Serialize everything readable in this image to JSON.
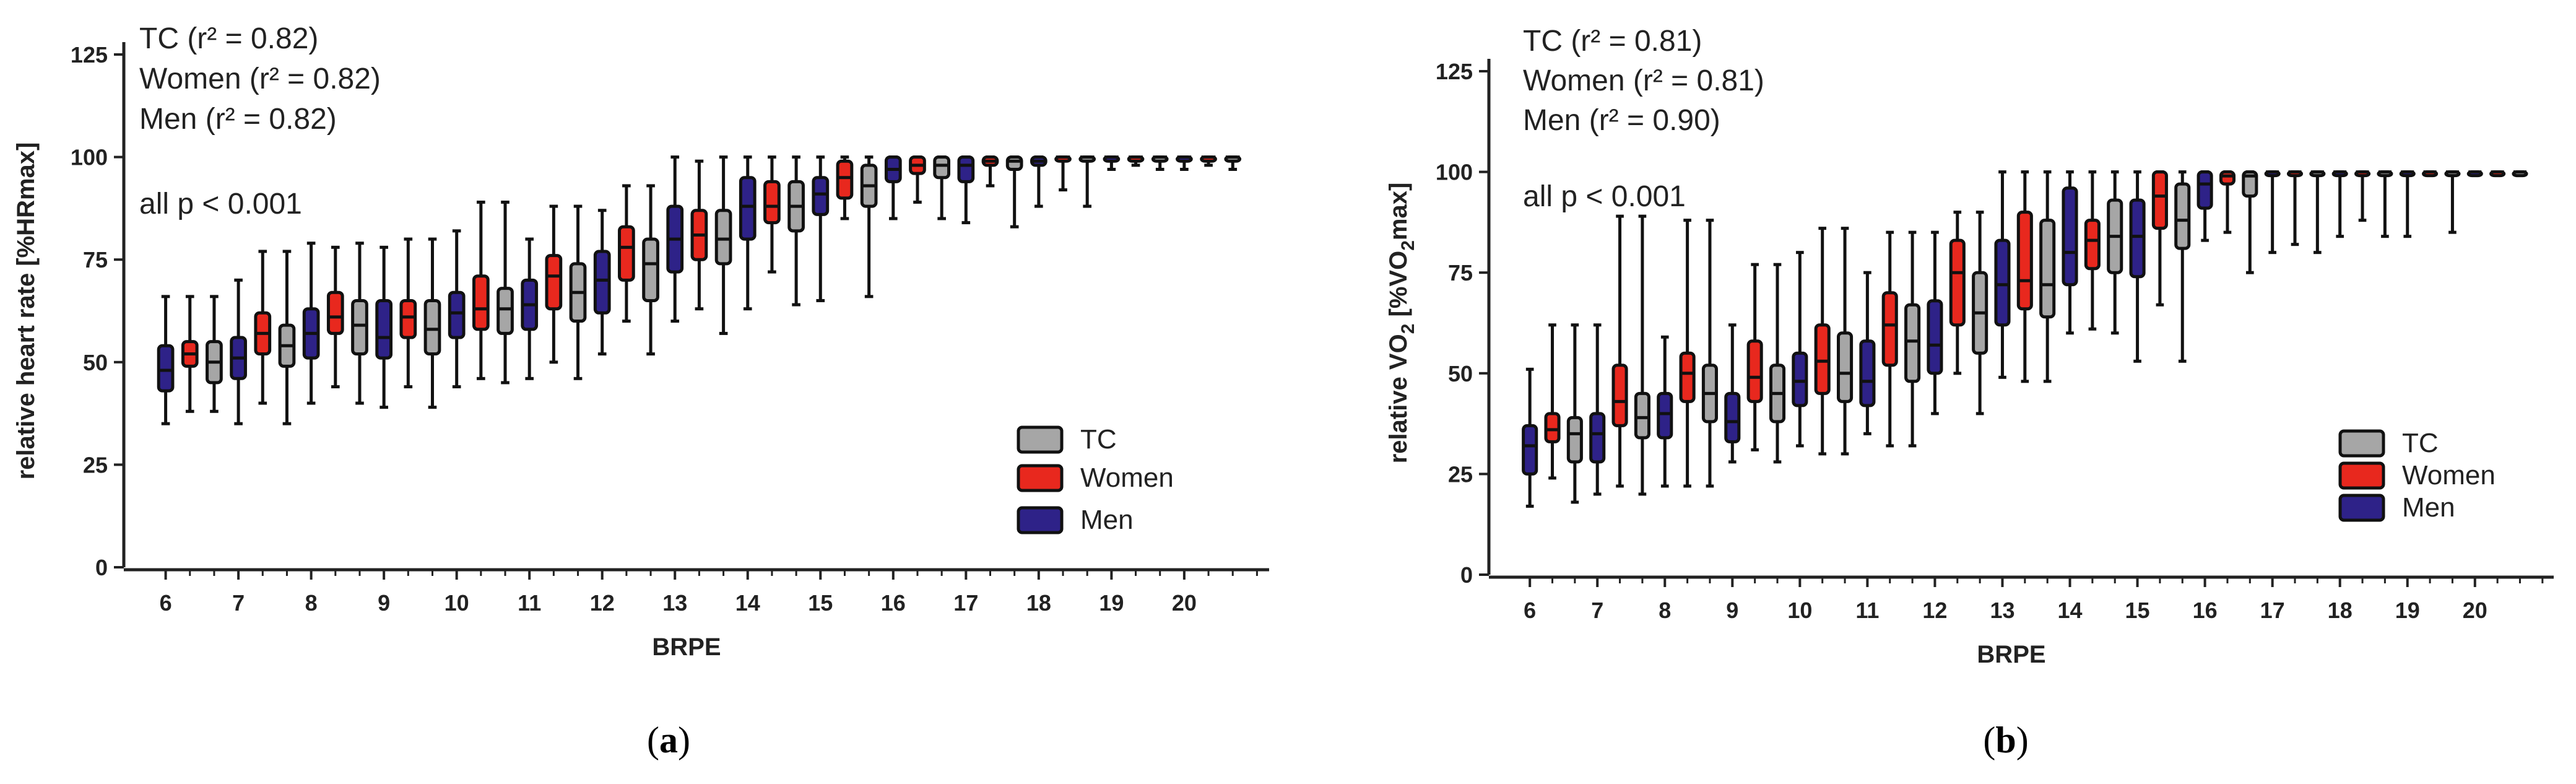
{
  "chart_data": [
    {
      "type": "box",
      "panel_label": "a",
      "ylabel": "relative heart rate [%HRmax]",
      "xlabel": "BRPE",
      "ylim": [
        0,
        125
      ],
      "yticks": [
        0,
        25,
        50,
        75,
        100,
        125
      ],
      "xticks": [
        "6",
        "7",
        "8",
        "9",
        "10",
        "11",
        "12",
        "13",
        "14",
        "15",
        "16",
        "17",
        "18",
        "19",
        "20"
      ],
      "annotations": [
        "TC (r² = 0.82)",
        "Women (r² = 0.82)",
        "Men (r² = 0.82)",
        "all p < 0.001"
      ],
      "legend": [
        {
          "name": "TC",
          "color": "#a6a6a6"
        },
        {
          "name": "Women",
          "color": "#e8281e"
        },
        {
          "name": "Men",
          "color": "#2e2288"
        }
      ],
      "categories": [
        "6",
        "6.5",
        "7",
        "7.5",
        "8",
        "8.5",
        "9",
        "9.5",
        "10",
        "10.5",
        "11",
        "11.5",
        "12",
        "12.5",
        "13",
        "13.5",
        "14",
        "14.5",
        "15",
        "15.5",
        "16",
        "16.5",
        "17",
        "17.5",
        "18",
        "18.5",
        "19",
        "19.5",
        "20",
        "20.5"
      ],
      "boxes": [
        {
          "x": 6,
          "g": "Men",
          "min": 35,
          "q1": 43,
          "med": 48,
          "q3": 54,
          "max": 66
        },
        {
          "x": 6,
          "g": "Women",
          "min": 38,
          "q1": 49,
          "med": 52,
          "q3": 55,
          "max": 66
        },
        {
          "x": 6,
          "g": "TC",
          "min": 38,
          "q1": 45,
          "med": 50,
          "q3": 55,
          "max": 66
        },
        {
          "x": 7,
          "g": "Men",
          "min": 35,
          "q1": 46,
          "med": 51,
          "q3": 56,
          "max": 70
        },
        {
          "x": 7,
          "g": "Women",
          "min": 40,
          "q1": 52,
          "med": 57,
          "q3": 62,
          "max": 77
        },
        {
          "x": 7,
          "g": "TC",
          "min": 35,
          "q1": 49,
          "med": 54,
          "q3": 59,
          "max": 77
        },
        {
          "x": 8,
          "g": "Men",
          "min": 40,
          "q1": 51,
          "med": 57,
          "q3": 63,
          "max": 79
        },
        {
          "x": 8,
          "g": "Women",
          "min": 44,
          "q1": 57,
          "med": 61,
          "q3": 67,
          "max": 78
        },
        {
          "x": 8,
          "g": "TC",
          "min": 40,
          "q1": 52,
          "med": 59,
          "q3": 65,
          "max": 79
        },
        {
          "x": 9,
          "g": "Men",
          "min": 39,
          "q1": 51,
          "med": 56,
          "q3": 65,
          "max": 78
        },
        {
          "x": 9,
          "g": "Women",
          "min": 44,
          "q1": 56,
          "med": 61,
          "q3": 65,
          "max": 80
        },
        {
          "x": 9,
          "g": "TC",
          "min": 39,
          "q1": 52,
          "med": 58,
          "q3": 65,
          "max": 80
        },
        {
          "x": 10,
          "g": "Men",
          "min": 44,
          "q1": 56,
          "med": 62,
          "q3": 67,
          "max": 82
        },
        {
          "x": 10,
          "g": "Women",
          "min": 46,
          "q1": 58,
          "med": 63,
          "q3": 71,
          "max": 89
        },
        {
          "x": 10,
          "g": "TC",
          "min": 45,
          "q1": 57,
          "med": 63,
          "q3": 68,
          "max": 89
        },
        {
          "x": 11,
          "g": "Men",
          "min": 46,
          "q1": 58,
          "med": 64,
          "q3": 70,
          "max": 80
        },
        {
          "x": 11,
          "g": "Women",
          "min": 50,
          "q1": 63,
          "med": 71,
          "q3": 76,
          "max": 88
        },
        {
          "x": 11,
          "g": "TC",
          "min": 46,
          "q1": 60,
          "med": 67,
          "q3": 74,
          "max": 88
        },
        {
          "x": 12,
          "g": "Men",
          "min": 52,
          "q1": 62,
          "med": 70,
          "q3": 77,
          "max": 87
        },
        {
          "x": 12,
          "g": "Women",
          "min": 60,
          "q1": 70,
          "med": 78,
          "q3": 83,
          "max": 93
        },
        {
          "x": 12,
          "g": "TC",
          "min": 52,
          "q1": 65,
          "med": 74,
          "q3": 80,
          "max": 93
        },
        {
          "x": 13,
          "g": "Men",
          "min": 60,
          "q1": 72,
          "med": 80,
          "q3": 88,
          "max": 100
        },
        {
          "x": 13,
          "g": "Women",
          "min": 63,
          "q1": 75,
          "med": 81,
          "q3": 87,
          "max": 99
        },
        {
          "x": 13,
          "g": "TC",
          "min": 57,
          "q1": 74,
          "med": 80,
          "q3": 87,
          "max": 100
        },
        {
          "x": 14,
          "g": "Men",
          "min": 63,
          "q1": 80,
          "med": 88,
          "q3": 95,
          "max": 100
        },
        {
          "x": 14,
          "g": "Women",
          "min": 72,
          "q1": 84,
          "med": 88,
          "q3": 94,
          "max": 100
        },
        {
          "x": 14,
          "g": "TC",
          "min": 64,
          "q1": 82,
          "med": 88,
          "q3": 94,
          "max": 100
        },
        {
          "x": 15,
          "g": "Men",
          "min": 65,
          "q1": 86,
          "med": 91,
          "q3": 95,
          "max": 100
        },
        {
          "x": 15,
          "g": "Women",
          "min": 85,
          "q1": 90,
          "med": 95,
          "q3": 99,
          "max": 100
        },
        {
          "x": 15,
          "g": "TC",
          "min": 66,
          "q1": 88,
          "med": 93,
          "q3": 98,
          "max": 100
        },
        {
          "x": 16,
          "g": "Men",
          "min": 85,
          "q1": 94,
          "med": 97,
          "q3": 100,
          "max": 100
        },
        {
          "x": 16,
          "g": "Women",
          "min": 89,
          "q1": 96,
          "med": 98,
          "q3": 100,
          "max": 100
        },
        {
          "x": 16,
          "g": "TC",
          "min": 85,
          "q1": 95,
          "med": 98,
          "q3": 100,
          "max": 100
        },
        {
          "x": 17,
          "g": "Men",
          "min": 84,
          "q1": 94,
          "med": 98,
          "q3": 100,
          "max": 100
        },
        {
          "x": 17,
          "g": "Women",
          "min": 93,
          "q1": 98,
          "med": 99,
          "q3": 100,
          "max": 100
        },
        {
          "x": 17,
          "g": "TC",
          "min": 83,
          "q1": 97,
          "med": 99,
          "q3": 100,
          "max": 100
        },
        {
          "x": 18,
          "g": "Men",
          "min": 88,
          "q1": 98,
          "med": 99,
          "q3": 100,
          "max": 100
        },
        {
          "x": 18,
          "g": "Women",
          "min": 92,
          "q1": 99,
          "med": 100,
          "q3": 100,
          "max": 100
        },
        {
          "x": 18,
          "g": "TC",
          "min": 88,
          "q1": 99,
          "med": 100,
          "q3": 100,
          "max": 100
        },
        {
          "x": 19,
          "g": "Men",
          "min": 97,
          "q1": 99,
          "med": 100,
          "q3": 100,
          "max": 100
        },
        {
          "x": 19,
          "g": "Women",
          "min": 98,
          "q1": 99,
          "med": 100,
          "q3": 100,
          "max": 100
        },
        {
          "x": 19,
          "g": "TC",
          "min": 97,
          "q1": 99,
          "med": 100,
          "q3": 100,
          "max": 100
        },
        {
          "x": 20,
          "g": "Men",
          "min": 97,
          "q1": 99,
          "med": 100,
          "q3": 100,
          "max": 100
        },
        {
          "x": 20,
          "g": "Women",
          "min": 98,
          "q1": 99,
          "med": 100,
          "q3": 100,
          "max": 100
        },
        {
          "x": 20,
          "g": "TC",
          "min": 97,
          "q1": 99,
          "med": 100,
          "q3": 100,
          "max": 100
        }
      ]
    },
    {
      "type": "box",
      "panel_label": "b",
      "ylabel": "relative VO₂ [%VO₂max]",
      "ylabel_parts": [
        "relative VO",
        "2",
        " [%VO",
        "2",
        "max]"
      ],
      "xlabel": "BRPE",
      "ylim": [
        0,
        125
      ],
      "yticks": [
        0,
        25,
        50,
        75,
        100,
        125
      ],
      "xticks": [
        "6",
        "7",
        "8",
        "9",
        "10",
        "11",
        "12",
        "13",
        "14",
        "15",
        "16",
        "17",
        "18",
        "19",
        "20"
      ],
      "annotations": [
        "TC (r² = 0.81)",
        "Women (r² = 0.81)",
        "Men (r² = 0.90)",
        "all p < 0.001"
      ],
      "legend": [
        {
          "name": "TC",
          "color": "#a6a6a6"
        },
        {
          "name": "Women",
          "color": "#e8281e"
        },
        {
          "name": "Men",
          "color": "#2e2288"
        }
      ],
      "categories": [
        "6",
        "6.5",
        "7",
        "7.5",
        "8",
        "8.5",
        "9",
        "9.5",
        "10",
        "10.5",
        "11",
        "11.5",
        "12",
        "12.5",
        "13",
        "13.5",
        "14",
        "14.5",
        "15",
        "15.5",
        "16",
        "16.5",
        "17",
        "17.5",
        "18",
        "18.5",
        "19",
        "19.5",
        "20",
        "20.5"
      ],
      "boxes": [
        {
          "x": 6,
          "g": "Men",
          "min": 17,
          "q1": 25,
          "med": 32,
          "q3": 37,
          "max": 51
        },
        {
          "x": 6,
          "g": "Women",
          "min": 24,
          "q1": 33,
          "med": 36,
          "q3": 40,
          "max": 62
        },
        {
          "x": 6,
          "g": "TC",
          "min": 18,
          "q1": 28,
          "med": 35,
          "q3": 39,
          "max": 62
        },
        {
          "x": 7,
          "g": "Men",
          "min": 20,
          "q1": 28,
          "med": 35,
          "q3": 40,
          "max": 62
        },
        {
          "x": 7,
          "g": "Women",
          "min": 22,
          "q1": 37,
          "med": 43,
          "q3": 52,
          "max": 89
        },
        {
          "x": 7,
          "g": "TC",
          "min": 20,
          "q1": 34,
          "med": 39,
          "q3": 45,
          "max": 89
        },
        {
          "x": 8,
          "g": "Men",
          "min": 22,
          "q1": 34,
          "med": 40,
          "q3": 45,
          "max": 59
        },
        {
          "x": 8,
          "g": "Women",
          "min": 22,
          "q1": 43,
          "med": 50,
          "q3": 55,
          "max": 88
        },
        {
          "x": 8,
          "g": "TC",
          "min": 22,
          "q1": 38,
          "med": 45,
          "q3": 52,
          "max": 88
        },
        {
          "x": 9,
          "g": "Men",
          "min": 28,
          "q1": 33,
          "med": 38,
          "q3": 45,
          "max": 62
        },
        {
          "x": 9,
          "g": "Women",
          "min": 31,
          "q1": 43,
          "med": 49,
          "q3": 58,
          "max": 77
        },
        {
          "x": 9,
          "g": "TC",
          "min": 28,
          "q1": 38,
          "med": 45,
          "q3": 52,
          "max": 77
        },
        {
          "x": 10,
          "g": "Men",
          "min": 32,
          "q1": 42,
          "med": 48,
          "q3": 55,
          "max": 80
        },
        {
          "x": 10,
          "g": "Women",
          "min": 30,
          "q1": 45,
          "med": 53,
          "q3": 62,
          "max": 86
        },
        {
          "x": 10,
          "g": "TC",
          "min": 30,
          "q1": 43,
          "med": 50,
          "q3": 60,
          "max": 86
        },
        {
          "x": 11,
          "g": "Men",
          "min": 35,
          "q1": 42,
          "med": 48,
          "q3": 58,
          "max": 75
        },
        {
          "x": 11,
          "g": "Women",
          "min": 32,
          "q1": 52,
          "med": 62,
          "q3": 70,
          "max": 85
        },
        {
          "x": 11,
          "g": "TC",
          "min": 32,
          "q1": 48,
          "med": 58,
          "q3": 67,
          "max": 85
        },
        {
          "x": 12,
          "g": "Men",
          "min": 40,
          "q1": 50,
          "med": 57,
          "q3": 68,
          "max": 85
        },
        {
          "x": 12,
          "g": "Women",
          "min": 50,
          "q1": 62,
          "med": 75,
          "q3": 83,
          "max": 90
        },
        {
          "x": 12,
          "g": "TC",
          "min": 40,
          "q1": 55,
          "med": 65,
          "q3": 75,
          "max": 90
        },
        {
          "x": 13,
          "g": "Men",
          "min": 49,
          "q1": 62,
          "med": 72,
          "q3": 83,
          "max": 100
        },
        {
          "x": 13,
          "g": "Women",
          "min": 48,
          "q1": 66,
          "med": 73,
          "q3": 90,
          "max": 100
        },
        {
          "x": 13,
          "g": "TC",
          "min": 48,
          "q1": 64,
          "med": 72,
          "q3": 88,
          "max": 100
        },
        {
          "x": 14,
          "g": "Men",
          "min": 60,
          "q1": 72,
          "med": 80,
          "q3": 96,
          "max": 100
        },
        {
          "x": 14,
          "g": "Women",
          "min": 61,
          "q1": 76,
          "med": 83,
          "q3": 88,
          "max": 100
        },
        {
          "x": 14,
          "g": "TC",
          "min": 60,
          "q1": 75,
          "med": 84,
          "q3": 93,
          "max": 100
        },
        {
          "x": 15,
          "g": "Men",
          "min": 53,
          "q1": 74,
          "med": 84,
          "q3": 93,
          "max": 100
        },
        {
          "x": 15,
          "g": "Women",
          "min": 67,
          "q1": 86,
          "med": 94,
          "q3": 100,
          "max": 100
        },
        {
          "x": 15,
          "g": "TC",
          "min": 53,
          "q1": 81,
          "med": 88,
          "q3": 97,
          "max": 100
        },
        {
          "x": 16,
          "g": "Men",
          "min": 83,
          "q1": 91,
          "med": 97,
          "q3": 100,
          "max": 100
        },
        {
          "x": 16,
          "g": "Women",
          "min": 85,
          "q1": 97,
          "med": 99,
          "q3": 100,
          "max": 100
        },
        {
          "x": 16,
          "g": "TC",
          "min": 75,
          "q1": 94,
          "med": 99,
          "q3": 100,
          "max": 100
        },
        {
          "x": 17,
          "g": "Men",
          "min": 80,
          "q1": 100,
          "med": 100,
          "q3": 100,
          "max": 100
        },
        {
          "x": 17,
          "g": "Women",
          "min": 82,
          "q1": 100,
          "med": 100,
          "q3": 100,
          "max": 100
        },
        {
          "x": 17,
          "g": "TC",
          "min": 80,
          "q1": 100,
          "med": 100,
          "q3": 100,
          "max": 100
        },
        {
          "x": 18,
          "g": "Men",
          "min": 84,
          "q1": 100,
          "med": 100,
          "q3": 100,
          "max": 100
        },
        {
          "x": 18,
          "g": "Women",
          "min": 88,
          "q1": 100,
          "med": 100,
          "q3": 100,
          "max": 100
        },
        {
          "x": 18,
          "g": "TC",
          "min": 84,
          "q1": 100,
          "med": 100,
          "q3": 100,
          "max": 100
        },
        {
          "x": 19,
          "g": "Men",
          "min": 84,
          "q1": 100,
          "med": 100,
          "q3": 100,
          "max": 100
        },
        {
          "x": 19,
          "g": "Women",
          "min": 100,
          "q1": 100,
          "med": 100,
          "q3": 100,
          "max": 100
        },
        {
          "x": 19,
          "g": "TC",
          "min": 85,
          "q1": 100,
          "med": 100,
          "q3": 100,
          "max": 100
        },
        {
          "x": 20,
          "g": "Men",
          "min": 100,
          "q1": 100,
          "med": 100,
          "q3": 100,
          "max": 100
        },
        {
          "x": 20,
          "g": "Women",
          "min": 100,
          "q1": 100,
          "med": 100,
          "q3": 100,
          "max": 100
        },
        {
          "x": 20,
          "g": "TC",
          "min": 100,
          "q1": 100,
          "med": 100,
          "q3": 100,
          "max": 100
        }
      ]
    }
  ]
}
